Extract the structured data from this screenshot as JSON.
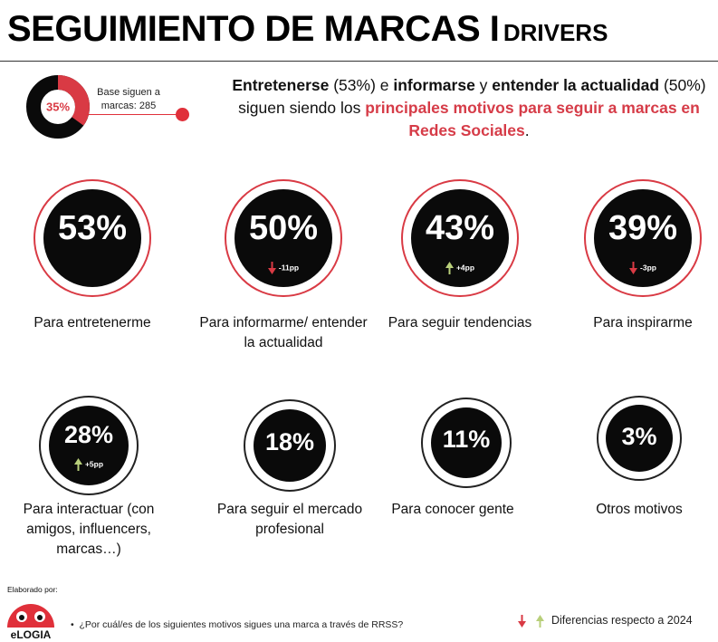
{
  "header": {
    "title": "SEGUIMIENTO DE MARCAS I",
    "subtitle": "DRIVERS"
  },
  "base": {
    "percent": "35%",
    "percent_value": 35,
    "text": "Base siguen a marcas: 285"
  },
  "headline": {
    "part1": "Entretenerse",
    "part2": " (53%) e ",
    "part3": "informarse",
    "part4": " y ",
    "part5": "entender la actualidad",
    "part6": " (50%) siguen siendo los ",
    "part7": "principales motivos para seguir a marcas en Redes Sociales",
    "part8": "."
  },
  "motives": [
    {
      "value": "53%",
      "delta": "",
      "direction": "",
      "label": "Para entretenerme"
    },
    {
      "value": "50%",
      "delta": "-11pp",
      "direction": "down",
      "label": "Para informarme/ entender la actualidad"
    },
    {
      "value": "43%",
      "delta": "+4pp",
      "direction": "up",
      "label": "Para seguir tendencias"
    },
    {
      "value": "39%",
      "delta": "-3pp",
      "direction": "down",
      "label": "Para inspirarme"
    },
    {
      "value": "28%",
      "delta": "+5pp",
      "direction": "up",
      "label": "Para interactuar (con amigos, influencers, marcas…)"
    },
    {
      "value": "18%",
      "delta": "",
      "direction": "",
      "label": "Para seguir el mercado profesional"
    },
    {
      "value": "11%",
      "delta": "",
      "direction": "",
      "label": "Para conocer gente"
    },
    {
      "value": "3%",
      "delta": "",
      "direction": "",
      "label": "Otros motivos"
    }
  ],
  "footer": {
    "elaborated_by": "Elaborado por:",
    "logo_text": "eLOGIA",
    "question": "¿Por cuál/es de los siguientes motivos sigues una marca a través de RRSS?",
    "legend": "Diferencias respecto a 2024"
  },
  "colors": {
    "accent": "#d93a44",
    "up": "#b8cf7a",
    "down": "#d93a44",
    "circle": "#0a0a0a"
  }
}
